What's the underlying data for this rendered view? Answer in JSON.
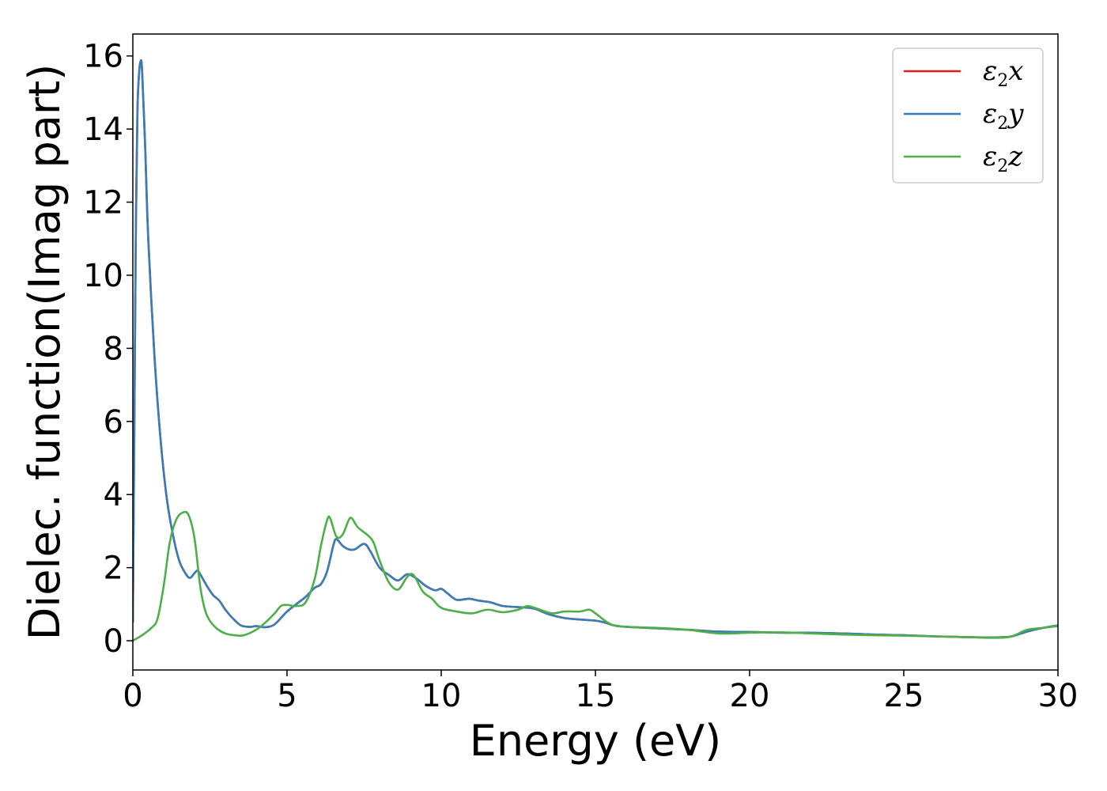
{
  "chart_data": {
    "type": "line",
    "title": "",
    "xlabel": "Energy (eV)",
    "ylabel": "Dielec. function(Imag part)",
    "xlim": [
      0,
      30
    ],
    "ylim": [
      -0.8,
      16.6
    ],
    "xticks": [
      0,
      5,
      10,
      15,
      20,
      25,
      30
    ],
    "yticks": [
      0,
      2,
      4,
      6,
      8,
      10,
      12,
      14,
      16
    ],
    "grid": false,
    "legend_position": "top-right",
    "series": [
      {
        "name": "ε2x",
        "legend_symbol": "ε",
        "legend_sub": "2",
        "legend_suffix": "x",
        "color": "#e41a1c",
        "points": [
          [
            0,
            0.5
          ],
          [
            0.05,
            6.0
          ],
          [
            0.1,
            11.5
          ],
          [
            0.15,
            14.5
          ],
          [
            0.2,
            15.5
          ],
          [
            0.25,
            15.85
          ],
          [
            0.3,
            15.6
          ],
          [
            0.4,
            13.5
          ],
          [
            0.5,
            11.0
          ],
          [
            0.7,
            7.8
          ],
          [
            0.9,
            5.5
          ],
          [
            1.1,
            3.9
          ],
          [
            1.3,
            2.9
          ],
          [
            1.5,
            2.2
          ],
          [
            1.7,
            1.85
          ],
          [
            1.85,
            1.72
          ],
          [
            2.0,
            1.85
          ],
          [
            2.1,
            1.92
          ],
          [
            2.2,
            1.8
          ],
          [
            2.4,
            1.5
          ],
          [
            2.6,
            1.25
          ],
          [
            2.8,
            1.1
          ],
          [
            3.0,
            0.85
          ],
          [
            3.2,
            0.65
          ],
          [
            3.5,
            0.42
          ],
          [
            3.8,
            0.38
          ],
          [
            4.0,
            0.4
          ],
          [
            4.3,
            0.37
          ],
          [
            4.6,
            0.45
          ],
          [
            5.0,
            0.8
          ],
          [
            5.3,
            1.0
          ],
          [
            5.6,
            1.2
          ],
          [
            5.9,
            1.45
          ],
          [
            6.1,
            1.55
          ],
          [
            6.3,
            1.9
          ],
          [
            6.5,
            2.6
          ],
          [
            6.6,
            2.78
          ],
          [
            6.8,
            2.6
          ],
          [
            7.0,
            2.5
          ],
          [
            7.2,
            2.5
          ],
          [
            7.5,
            2.65
          ],
          [
            7.7,
            2.45
          ],
          [
            8.0,
            2.0
          ],
          [
            8.3,
            1.8
          ],
          [
            8.6,
            1.65
          ],
          [
            8.9,
            1.82
          ],
          [
            9.2,
            1.7
          ],
          [
            9.5,
            1.5
          ],
          [
            9.8,
            1.38
          ],
          [
            10.0,
            1.42
          ],
          [
            10.2,
            1.3
          ],
          [
            10.5,
            1.12
          ],
          [
            10.9,
            1.15
          ],
          [
            11.2,
            1.1
          ],
          [
            11.6,
            1.05
          ],
          [
            12.0,
            0.95
          ],
          [
            12.5,
            0.92
          ],
          [
            13.0,
            0.88
          ],
          [
            13.5,
            0.72
          ],
          [
            14.0,
            0.62
          ],
          [
            14.5,
            0.58
          ],
          [
            15.0,
            0.55
          ],
          [
            15.3,
            0.5
          ],
          [
            15.6,
            0.42
          ],
          [
            16.0,
            0.38
          ],
          [
            17.0,
            0.34
          ],
          [
            18.0,
            0.3
          ],
          [
            19.0,
            0.25
          ],
          [
            20.0,
            0.24
          ],
          [
            21.0,
            0.22
          ],
          [
            22.0,
            0.22
          ],
          [
            23.0,
            0.2
          ],
          [
            24.0,
            0.17
          ],
          [
            25.0,
            0.15
          ],
          [
            26.0,
            0.12
          ],
          [
            27.0,
            0.1
          ],
          [
            28.0,
            0.09
          ],
          [
            28.5,
            0.12
          ],
          [
            29.0,
            0.25
          ],
          [
            29.5,
            0.35
          ],
          [
            30.0,
            0.42
          ]
        ]
      },
      {
        "name": "ε2y",
        "legend_symbol": "ε",
        "legend_sub": "2",
        "legend_suffix": "y",
        "color": "#377eb8",
        "points": [
          [
            0,
            0.5
          ],
          [
            0.05,
            6.0
          ],
          [
            0.1,
            11.5
          ],
          [
            0.15,
            14.5
          ],
          [
            0.2,
            15.5
          ],
          [
            0.25,
            15.85
          ],
          [
            0.3,
            15.6
          ],
          [
            0.4,
            13.5
          ],
          [
            0.5,
            11.0
          ],
          [
            0.7,
            7.8
          ],
          [
            0.9,
            5.5
          ],
          [
            1.1,
            3.9
          ],
          [
            1.3,
            2.9
          ],
          [
            1.5,
            2.2
          ],
          [
            1.7,
            1.85
          ],
          [
            1.85,
            1.72
          ],
          [
            2.0,
            1.85
          ],
          [
            2.1,
            1.92
          ],
          [
            2.2,
            1.8
          ],
          [
            2.4,
            1.5
          ],
          [
            2.6,
            1.25
          ],
          [
            2.8,
            1.1
          ],
          [
            3.0,
            0.85
          ],
          [
            3.2,
            0.65
          ],
          [
            3.5,
            0.42
          ],
          [
            3.8,
            0.38
          ],
          [
            4.0,
            0.4
          ],
          [
            4.3,
            0.37
          ],
          [
            4.6,
            0.45
          ],
          [
            5.0,
            0.8
          ],
          [
            5.3,
            1.0
          ],
          [
            5.6,
            1.2
          ],
          [
            5.9,
            1.45
          ],
          [
            6.1,
            1.55
          ],
          [
            6.3,
            1.9
          ],
          [
            6.5,
            2.6
          ],
          [
            6.6,
            2.78
          ],
          [
            6.8,
            2.6
          ],
          [
            7.0,
            2.5
          ],
          [
            7.2,
            2.5
          ],
          [
            7.5,
            2.65
          ],
          [
            7.7,
            2.45
          ],
          [
            8.0,
            2.0
          ],
          [
            8.3,
            1.8
          ],
          [
            8.6,
            1.65
          ],
          [
            8.9,
            1.82
          ],
          [
            9.2,
            1.7
          ],
          [
            9.5,
            1.5
          ],
          [
            9.8,
            1.38
          ],
          [
            10.0,
            1.42
          ],
          [
            10.2,
            1.3
          ],
          [
            10.5,
            1.12
          ],
          [
            10.9,
            1.15
          ],
          [
            11.2,
            1.1
          ],
          [
            11.6,
            1.05
          ],
          [
            12.0,
            0.95
          ],
          [
            12.5,
            0.92
          ],
          [
            13.0,
            0.88
          ],
          [
            13.5,
            0.72
          ],
          [
            14.0,
            0.62
          ],
          [
            14.5,
            0.58
          ],
          [
            15.0,
            0.55
          ],
          [
            15.3,
            0.5
          ],
          [
            15.6,
            0.42
          ],
          [
            16.0,
            0.38
          ],
          [
            17.0,
            0.34
          ],
          [
            18.0,
            0.3
          ],
          [
            19.0,
            0.25
          ],
          [
            20.0,
            0.24
          ],
          [
            21.0,
            0.22
          ],
          [
            22.0,
            0.22
          ],
          [
            23.0,
            0.2
          ],
          [
            24.0,
            0.17
          ],
          [
            25.0,
            0.15
          ],
          [
            26.0,
            0.12
          ],
          [
            27.0,
            0.1
          ],
          [
            28.0,
            0.09
          ],
          [
            28.5,
            0.12
          ],
          [
            29.0,
            0.25
          ],
          [
            29.5,
            0.35
          ],
          [
            30.0,
            0.42
          ]
        ]
      },
      {
        "name": "ε2z",
        "legend_symbol": "ε",
        "legend_sub": "2",
        "legend_suffix": "z",
        "color": "#4daf4a",
        "points": [
          [
            0,
            0.0
          ],
          [
            0.3,
            0.15
          ],
          [
            0.6,
            0.35
          ],
          [
            0.8,
            0.6
          ],
          [
            1.0,
            1.5
          ],
          [
            1.2,
            2.7
          ],
          [
            1.4,
            3.3
          ],
          [
            1.6,
            3.5
          ],
          [
            1.8,
            3.45
          ],
          [
            2.0,
            2.8
          ],
          [
            2.2,
            1.4
          ],
          [
            2.4,
            0.7
          ],
          [
            2.7,
            0.35
          ],
          [
            3.0,
            0.2
          ],
          [
            3.3,
            0.15
          ],
          [
            3.6,
            0.15
          ],
          [
            4.0,
            0.3
          ],
          [
            4.3,
            0.5
          ],
          [
            4.6,
            0.75
          ],
          [
            4.8,
            0.95
          ],
          [
            5.0,
            0.98
          ],
          [
            5.3,
            0.95
          ],
          [
            5.6,
            1.05
          ],
          [
            5.9,
            1.7
          ],
          [
            6.1,
            2.6
          ],
          [
            6.3,
            3.3
          ],
          [
            6.4,
            3.35
          ],
          [
            6.6,
            2.85
          ],
          [
            6.8,
            2.9
          ],
          [
            7.0,
            3.3
          ],
          [
            7.1,
            3.35
          ],
          [
            7.3,
            3.1
          ],
          [
            7.6,
            2.9
          ],
          [
            7.8,
            2.7
          ],
          [
            8.0,
            2.2
          ],
          [
            8.3,
            1.6
          ],
          [
            8.6,
            1.4
          ],
          [
            8.9,
            1.75
          ],
          [
            9.1,
            1.8
          ],
          [
            9.4,
            1.35
          ],
          [
            9.7,
            1.15
          ],
          [
            10.0,
            0.9
          ],
          [
            10.5,
            0.8
          ],
          [
            11.0,
            0.75
          ],
          [
            11.5,
            0.85
          ],
          [
            12.0,
            0.78
          ],
          [
            12.5,
            0.85
          ],
          [
            12.8,
            0.95
          ],
          [
            13.2,
            0.85
          ],
          [
            13.6,
            0.75
          ],
          [
            14.0,
            0.8
          ],
          [
            14.5,
            0.8
          ],
          [
            14.8,
            0.85
          ],
          [
            15.0,
            0.75
          ],
          [
            15.5,
            0.45
          ],
          [
            16.0,
            0.38
          ],
          [
            17.0,
            0.35
          ],
          [
            18.0,
            0.3
          ],
          [
            19.0,
            0.2
          ],
          [
            20.0,
            0.22
          ],
          [
            21.0,
            0.23
          ],
          [
            22.0,
            0.2
          ],
          [
            23.0,
            0.17
          ],
          [
            24.0,
            0.15
          ],
          [
            25.0,
            0.14
          ],
          [
            26.0,
            0.12
          ],
          [
            27.0,
            0.1
          ],
          [
            28.0,
            0.08
          ],
          [
            28.5,
            0.12
          ],
          [
            29.0,
            0.3
          ],
          [
            29.5,
            0.35
          ],
          [
            30.0,
            0.4
          ]
        ]
      }
    ]
  }
}
